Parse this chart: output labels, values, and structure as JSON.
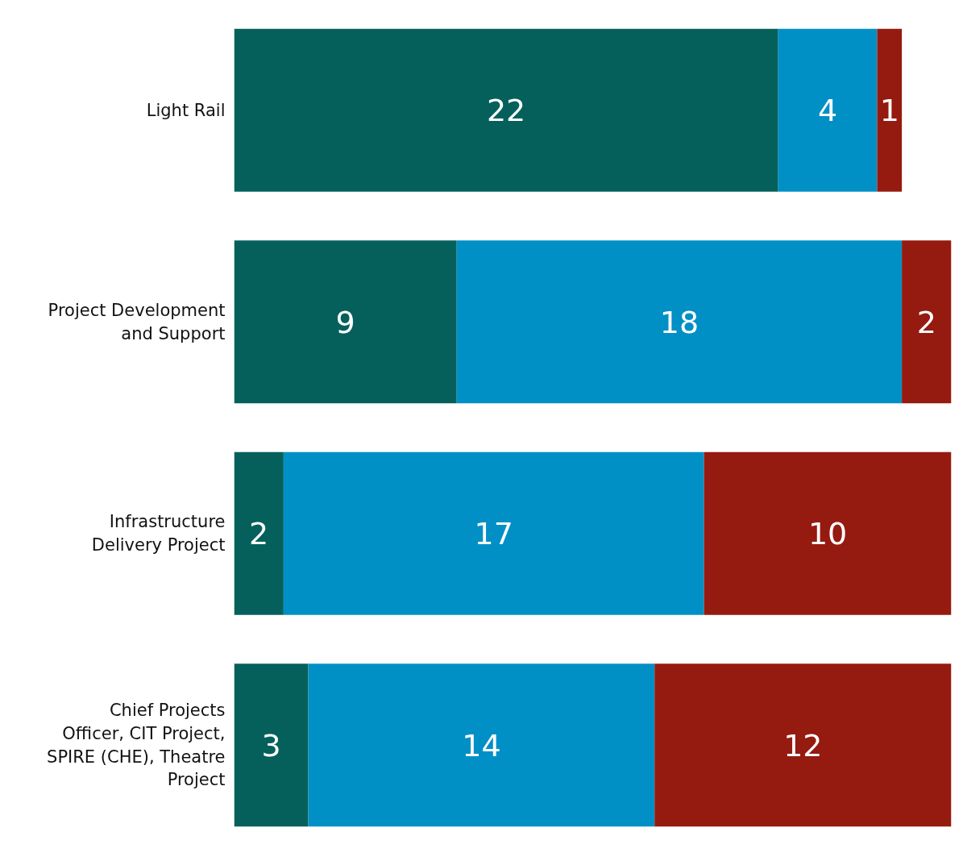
{
  "chart_data": {
    "type": "bar",
    "orientation": "horizontal",
    "stacked": true,
    "data_labels": true,
    "categories": [
      "Light Rail",
      "Project Development and Support",
      "Infrastructure Delivery Project",
      "Chief Projects Officer, CIT Project, SPIRE (CHE), Theatre Project"
    ],
    "series": [
      {
        "color": "#05605c",
        "values": [
          22,
          9,
          2,
          3
        ]
      },
      {
        "color": "#0090c6",
        "values": [
          4,
          18,
          17,
          14
        ]
      },
      {
        "color": "#951a10",
        "values": [
          1,
          2,
          10,
          12
        ]
      }
    ],
    "grid": false
  }
}
